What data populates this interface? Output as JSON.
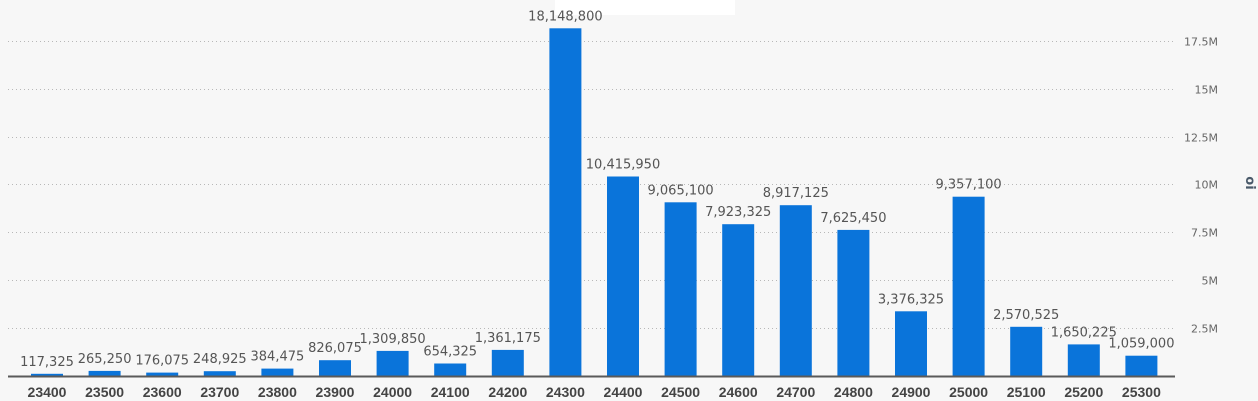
{
  "chart_data": {
    "type": "bar",
    "title": "",
    "xlabel": "",
    "ylabel": "oi",
    "ylim": [
      0,
      19000000
    ],
    "yticks": [
      2500000,
      5000000,
      7500000,
      10000000,
      12500000,
      15000000,
      17500000
    ],
    "ytick_labels": [
      "2.5M",
      "5M",
      "7.5M",
      "10M",
      "12.5M",
      "15M",
      "17.5M"
    ],
    "y_axis_position": "right",
    "grid": true,
    "categories": [
      "23400",
      "23500",
      "23600",
      "23700",
      "23800",
      "23900",
      "24000",
      "24100",
      "24200",
      "24300",
      "24400",
      "24500",
      "24600",
      "24700",
      "24800",
      "24900",
      "25000",
      "25100",
      "25200",
      "25300"
    ],
    "values": [
      117325,
      265250,
      176075,
      248925,
      384475,
      826075,
      1309850,
      654325,
      1361175,
      18148800,
      10415950,
      9065100,
      7923325,
      8917125,
      7625450,
      3376325,
      9357100,
      2570525,
      1650225,
      1059000
    ],
    "value_labels": [
      "117,325",
      "265,250",
      "176,075",
      "248,925",
      "384,475",
      "826,075",
      "1,309,850",
      "654,325",
      "1,361,175",
      "18,148,800",
      "10,415,950",
      "9,065,100",
      "7,923,325",
      "8,917,125",
      "7,625,450",
      "3,376,325",
      "9,357,100",
      "2,570,525",
      "1,650,225",
      "1,059,000"
    ],
    "bar_color": "#0a74da"
  }
}
